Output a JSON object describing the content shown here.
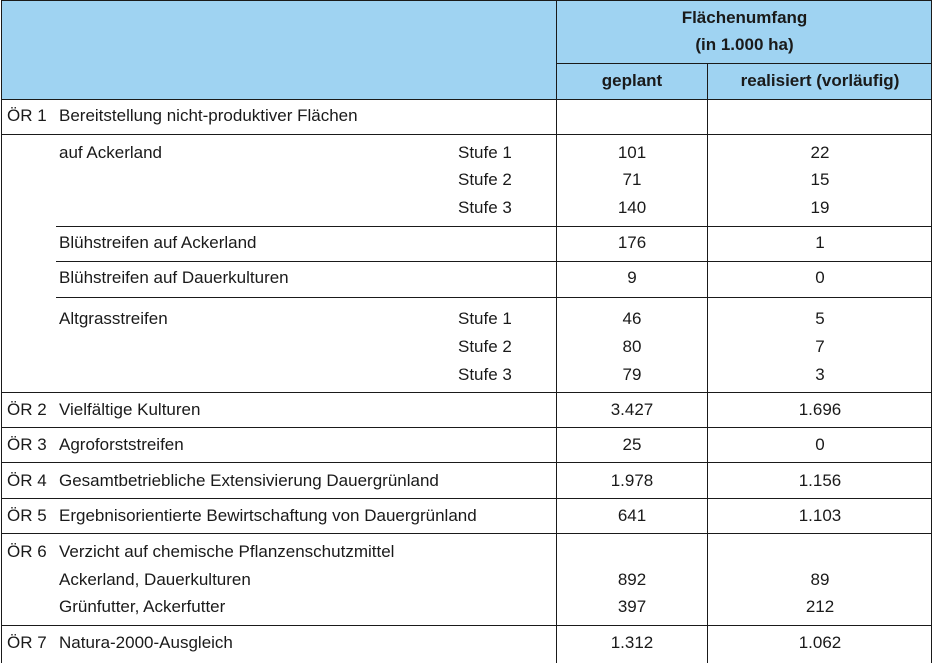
{
  "header": {
    "group_title": "Flächenumfang",
    "group_subtitle": "(in 1.000 ha)",
    "col_planned": "geplant",
    "col_realized": "realisiert (vorläufig)"
  },
  "oer1": {
    "code": "ÖR 1",
    "label": "Bereitstellung nicht-produktiver Flächen",
    "ackerland": {
      "label": "auf Ackerland",
      "rows": [
        {
          "stufe": "Stufe 1",
          "planned": "101",
          "realized": "22"
        },
        {
          "stufe": "Stufe 2",
          "planned": "71",
          "realized": "15"
        },
        {
          "stufe": "Stufe 3",
          "planned": "140",
          "realized": "19"
        }
      ]
    },
    "bluehstreifen_acker": {
      "label": "Blühstreifen auf Ackerland",
      "planned": "176",
      "realized": "1"
    },
    "bluehstreifen_dauer": {
      "label": "Blühstreifen auf Dauerkulturen",
      "planned": "9",
      "realized": "0"
    },
    "altgras": {
      "label": "Altgrasstreifen",
      "rows": [
        {
          "stufe": "Stufe 1",
          "planned": "46",
          "realized": "5"
        },
        {
          "stufe": "Stufe 2",
          "planned": "80",
          "realized": "7"
        },
        {
          "stufe": "Stufe 3",
          "planned": "79",
          "realized": "3"
        }
      ]
    }
  },
  "oer2": {
    "code": "ÖR 2",
    "label": "Vielfältige Kulturen",
    "planned": "3.427",
    "realized": "1.696"
  },
  "oer3": {
    "code": "ÖR 3",
    "label": "Agroforststreifen",
    "planned": "25",
    "realized": "0"
  },
  "oer4": {
    "code": "ÖR 4",
    "label": "Gesamtbetriebliche Extensivierung Dauergrünland",
    "planned": "1.978",
    "realized": "1.156"
  },
  "oer5": {
    "code": "ÖR 5",
    "label": "Ergebnisorientierte Bewirtschaftung von Dauergrünland",
    "planned": "641",
    "realized": "1.103"
  },
  "oer6": {
    "code": "ÖR 6",
    "label": "Verzicht auf chemische Pflanzenschutzmittel",
    "rows": [
      {
        "label": "Ackerland, Dauerkulturen",
        "planned": "892",
        "realized": "89"
      },
      {
        "label": "Grünfutter, Ackerfutter",
        "planned": "397",
        "realized": "212"
      }
    ]
  },
  "oer7": {
    "code": "ÖR 7",
    "label": "Natura-2000-Ausgleich",
    "planned": "1.312",
    "realized": "1.062"
  }
}
